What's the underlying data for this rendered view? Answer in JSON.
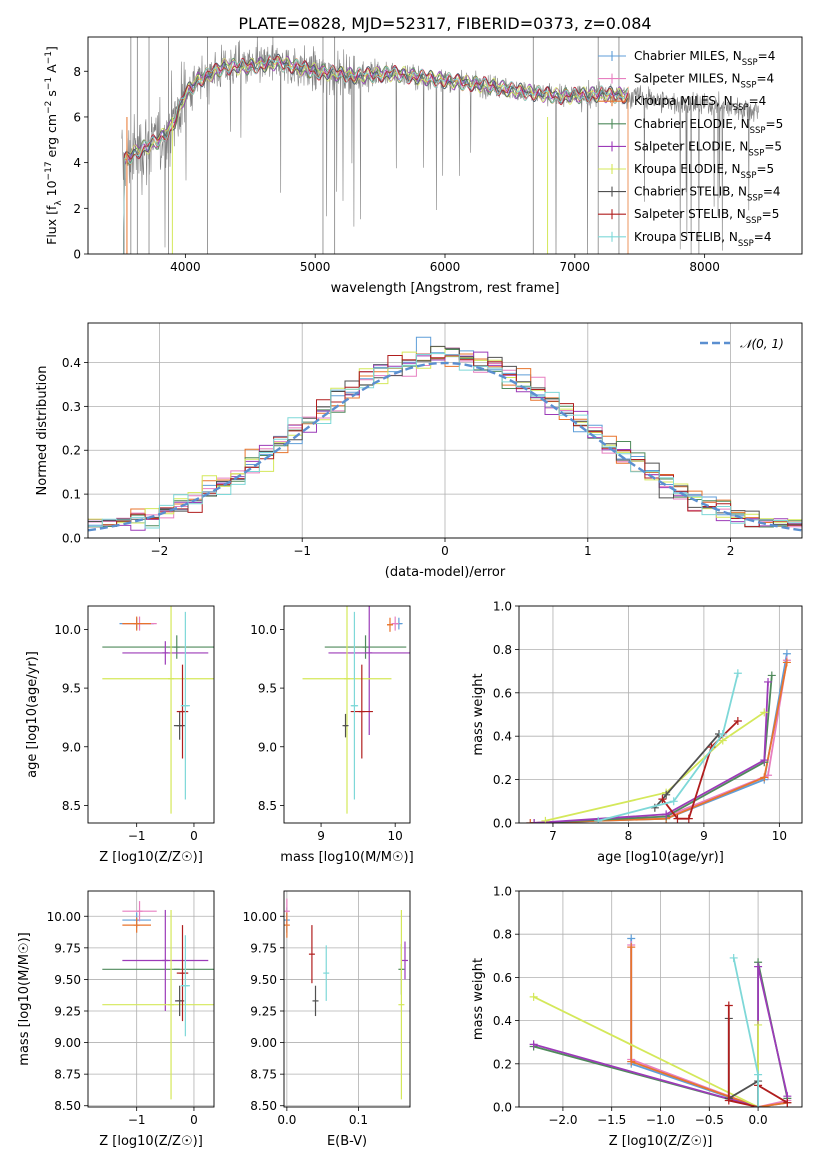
{
  "figure": {
    "title": "PLATE=0828, MJD=52317, FIBERID=0373, z=0.084"
  },
  "colors": {
    "Chabrier MILES": "#5f9ed8",
    "Salpeter MILES": "#e77fc0",
    "Kroupa MILES": "#e8742c",
    "Chabrier ELODIE": "#4f8a5b",
    "Salpeter ELODIE": "#9c3bb8",
    "Kroupa ELODIE": "#d4e85a",
    "Chabrier STELIB": "#505050",
    "Salpeter STELIB": "#b01e1e",
    "Kroupa STELIB": "#7ed8d8",
    "data": "#808080",
    "normal": "#5b8fd0",
    "grid": "#b0b0b0"
  },
  "chart_data": [
    {
      "id": "spectrum",
      "type": "line",
      "xlabel": "wavelength [Angstrom, rest frame]",
      "ylabel": "Flux [f_λ 10^-17 erg cm^-2 s^-1 A^-1]",
      "xlim": [
        3250,
        8750
      ],
      "ylim": [
        0,
        9.5
      ],
      "xticks": [
        4000,
        5000,
        6000,
        7000,
        8000
      ],
      "yticks": [
        0,
        2,
        4,
        6,
        8
      ],
      "grid": false,
      "legend_position": "right",
      "legend": [
        {
          "model": "Chabrier MILES",
          "nssp": "4"
        },
        {
          "model": "Salpeter MILES",
          "nssp": "4"
        },
        {
          "model": "Kroupa MILES",
          "nssp": "4"
        },
        {
          "model": "Chabrier ELODIE",
          "nssp": "5"
        },
        {
          "model": "Salpeter ELODIE",
          "nssp": "5"
        },
        {
          "model": "Kroupa ELODIE",
          "nssp": "5"
        },
        {
          "model": "Chabrier STELIB",
          "nssp": "4"
        },
        {
          "model": "Salpeter STELIB",
          "nssp": "5"
        },
        {
          "model": "Kroupa STELIB",
          "nssp": "4"
        }
      ],
      "continuum": {
        "x": [
          3520,
          3600,
          3700,
          3800,
          3900,
          4000,
          4100,
          4200,
          4300,
          4500,
          4700,
          5000,
          5300,
          5600,
          6000,
          6300,
          6600,
          6900,
          7200,
          7500,
          7800,
          8100,
          8400
        ],
        "y": [
          4.0,
          4.4,
          4.7,
          5.0,
          5.6,
          7.0,
          7.6,
          7.9,
          8.2,
          8.2,
          8.4,
          8.0,
          7.8,
          7.9,
          7.6,
          7.4,
          7.1,
          6.9,
          7.0,
          6.9,
          6.6,
          6.5,
          6.3
        ]
      },
      "model_wavelength_range": [
        3510,
        7410
      ]
    },
    {
      "id": "residuals",
      "type": "histogram",
      "xlabel": "(data-model)/error",
      "ylabel": "Normed distribution",
      "xlim": [
        -2.5,
        2.5
      ],
      "ylim": [
        0,
        0.49
      ],
      "xticks": [
        -2,
        -1,
        0,
        1,
        2
      ],
      "yticks": [
        0.0,
        0.1,
        0.2,
        0.3,
        0.4
      ],
      "grid": true,
      "legend_position": "upper right",
      "bin_width": 0.1,
      "reference": {
        "label": "N(0,1)",
        "mean": 0,
        "sigma": 1
      }
    },
    {
      "id": "age-vs-metallicity",
      "type": "scatter",
      "xlabel": "Z [log10(Z/Z☉)]",
      "ylabel": "age [log10(age/yr)]",
      "xlim": [
        -1.85,
        0.35
      ],
      "ylim": [
        8.35,
        10.2
      ],
      "xticks": [
        -1,
        0
      ],
      "yticks": [
        8.5,
        9.0,
        9.5,
        10.0
      ],
      "grid": false,
      "points": [
        {
          "model": "Chabrier MILES",
          "x": -1.0,
          "xerr": 0.3,
          "y": 10.05,
          "yerr": 0.05
        },
        {
          "model": "Salpeter MILES",
          "x": -0.95,
          "xerr": 0.3,
          "y": 10.05,
          "yerr": 0.06
        },
        {
          "model": "Kroupa MILES",
          "x": -1.0,
          "xerr": 0.25,
          "y": 10.05,
          "yerr": 0.06
        },
        {
          "model": "Chabrier ELODIE",
          "x": -0.3,
          "xerr": 1.3,
          "y": 9.85,
          "yerr": 0.1
        },
        {
          "model": "Salpeter ELODIE",
          "x": -0.5,
          "xerr": 0.75,
          "y": 9.8,
          "yerr": 0.1
        },
        {
          "model": "Kroupa ELODIE",
          "x": -0.4,
          "xerr": 1.2,
          "y": 9.58,
          "yerr": 1.15
        },
        {
          "model": "Chabrier STELIB",
          "x": -0.25,
          "xerr": 0.1,
          "y": 9.18,
          "yerr": 0.12
        },
        {
          "model": "Salpeter STELIB",
          "x": -0.2,
          "xerr": 0.1,
          "y": 9.3,
          "yerr": 0.4
        },
        {
          "model": "Kroupa STELIB",
          "x": -0.15,
          "xerr": 0.08,
          "y": 9.35,
          "yerr": 0.8
        }
      ]
    },
    {
      "id": "age-vs-mass",
      "type": "scatter",
      "xlabel": "mass [log10(M/M☉)]",
      "ylabel": "",
      "xlim": [
        8.5,
        10.2
      ],
      "ylim": [
        8.35,
        10.2
      ],
      "xticks": [
        9,
        10
      ],
      "yticks": [
        8.5,
        9.0,
        9.5,
        10.0
      ],
      "grid": false,
      "points": [
        {
          "model": "Chabrier MILES",
          "x": 10.05,
          "xerr": 0.05,
          "y": 10.05,
          "yerr": 0.05
        },
        {
          "model": "Salpeter MILES",
          "x": 10.0,
          "xerr": 0.05,
          "y": 10.05,
          "yerr": 0.06
        },
        {
          "model": "Kroupa MILES",
          "x": 9.93,
          "xerr": 0.04,
          "y": 10.04,
          "yerr": 0.06
        },
        {
          "model": "Chabrier ELODIE",
          "x": 9.6,
          "xerr": 0.55,
          "y": 9.85,
          "yerr": 0.1
        },
        {
          "model": "Salpeter ELODIE",
          "x": 9.65,
          "xerr": 0.55,
          "y": 9.8,
          "yerr": 0.7
        },
        {
          "model": "Kroupa ELODIE",
          "x": 9.35,
          "xerr": 0.6,
          "y": 9.58,
          "yerr": 1.15
        },
        {
          "model": "Chabrier STELIB",
          "x": 9.33,
          "xerr": 0.02,
          "y": 9.18,
          "yerr": 0.1
        },
        {
          "model": "Salpeter STELIB",
          "x": 9.55,
          "xerr": 0.15,
          "y": 9.3,
          "yerr": 0.4
        },
        {
          "model": "Kroupa STELIB",
          "x": 9.45,
          "xerr": 0.05,
          "y": 9.35,
          "yerr": 0.8
        }
      ]
    },
    {
      "id": "mass-weight-vs-age",
      "type": "line",
      "xlabel": "age [log10(age/yr)]",
      "ylabel": "mass weight",
      "xlim": [
        6.55,
        10.3
      ],
      "ylim": [
        0,
        1
      ],
      "xticks": [
        7,
        8,
        9,
        10
      ],
      "yticks": [
        0.0,
        0.2,
        0.4,
        0.6,
        0.8,
        1.0
      ],
      "grid": true,
      "series": [
        {
          "model": "Chabrier MILES",
          "x": [
            6.7,
            8.5,
            9.8,
            10.1
          ],
          "y": [
            0.0,
            0.02,
            0.2,
            0.78
          ]
        },
        {
          "model": "Salpeter MILES",
          "x": [
            6.7,
            8.5,
            9.85,
            10.1
          ],
          "y": [
            0.0,
            0.03,
            0.22,
            0.75
          ]
        },
        {
          "model": "Kroupa MILES",
          "x": [
            6.7,
            8.5,
            9.8,
            10.1
          ],
          "y": [
            0.0,
            0.02,
            0.21,
            0.74
          ]
        },
        {
          "model": "Chabrier ELODIE",
          "x": [
            6.75,
            8.5,
            9.8,
            9.9
          ],
          "y": [
            0.0,
            0.03,
            0.28,
            0.68
          ]
        },
        {
          "model": "Salpeter ELODIE",
          "x": [
            6.75,
            8.5,
            9.8,
            9.85
          ],
          "y": [
            0.0,
            0.04,
            0.29,
            0.65
          ]
        },
        {
          "model": "Kroupa ELODIE",
          "x": [
            6.9,
            8.5,
            9.25,
            9.8
          ],
          "y": [
            0.01,
            0.14,
            0.38,
            0.51
          ]
        },
        {
          "model": "Chabrier STELIB",
          "x": [
            8.35,
            8.5,
            9.2
          ],
          "y": [
            0.07,
            0.13,
            0.41
          ]
        },
        {
          "model": "Salpeter STELIB",
          "x": [
            8.45,
            8.65,
            8.8,
            9.1,
            9.45
          ],
          "y": [
            0.11,
            0.02,
            0.02,
            0.35,
            0.47
          ]
        },
        {
          "model": "Kroupa STELIB",
          "x": [
            7.6,
            8.6,
            9.25,
            9.45
          ],
          "y": [
            0.01,
            0.1,
            0.41,
            0.69
          ]
        }
      ]
    },
    {
      "id": "mass-vs-metallicity",
      "type": "scatter",
      "xlabel": "Z [log10(Z/Z☉)]",
      "ylabel": "mass [log10(M/M☉)]",
      "xlim": [
        -1.85,
        0.35
      ],
      "ylim": [
        8.49,
        10.2
      ],
      "xticks": [
        -1,
        0
      ],
      "yticks": [
        8.5,
        8.75,
        9.0,
        9.25,
        9.5,
        9.75,
        10.0
      ],
      "grid": true,
      "points": [
        {
          "model": "Chabrier MILES",
          "x": -1.0,
          "xerr": 0.25,
          "y": 9.97,
          "yerr": 0.06
        },
        {
          "model": "Salpeter MILES",
          "x": -0.95,
          "xerr": 0.3,
          "y": 10.04,
          "yerr": 0.08
        },
        {
          "model": "Kroupa MILES",
          "x": -1.0,
          "xerr": 0.25,
          "y": 9.93,
          "yerr": 0.06
        },
        {
          "model": "Chabrier ELODIE",
          "x": -0.3,
          "xerr": 1.3,
          "y": 9.58,
          "yerr": 0.0
        },
        {
          "model": "Salpeter ELODIE",
          "x": -0.5,
          "xerr": 0.75,
          "y": 9.65,
          "yerr": 0.4
        },
        {
          "model": "Kroupa ELODIE",
          "x": -0.4,
          "xerr": 1.2,
          "y": 9.3,
          "yerr": 0.75
        },
        {
          "model": "Chabrier STELIB",
          "x": -0.25,
          "xerr": 0.08,
          "y": 9.33,
          "yerr": 0.12
        },
        {
          "model": "Salpeter STELIB",
          "x": -0.2,
          "xerr": 0.1,
          "y": 9.55,
          "yerr": 0.38
        },
        {
          "model": "Kroupa STELIB",
          "x": -0.15,
          "xerr": 0.08,
          "y": 9.45,
          "yerr": 0.4
        }
      ]
    },
    {
      "id": "mass-vs-extinction",
      "type": "scatter",
      "xlabel": "E(B-V)",
      "ylabel": "",
      "xlim": [
        -0.004,
        0.172
      ],
      "ylim": [
        8.49,
        10.2
      ],
      "xticks": [
        0.0,
        0.1
      ],
      "yticks": [
        8.5,
        8.75,
        9.0,
        9.25,
        9.5,
        9.75,
        10.0
      ],
      "grid": true,
      "points": [
        {
          "model": "Chabrier MILES",
          "x": 0.0,
          "y": 9.97,
          "yerr": 0.1
        },
        {
          "model": "Salpeter MILES",
          "x": 0.0,
          "y": 10.04,
          "yerr": 0.1
        },
        {
          "model": "Kroupa MILES",
          "x": 0.0,
          "y": 9.93,
          "yerr": 0.1
        },
        {
          "model": "Chabrier ELODIE",
          "x": 0.16,
          "y": 9.58,
          "yerr": 0.2
        },
        {
          "model": "Salpeter ELODIE",
          "x": 0.165,
          "y": 9.65,
          "yerr": 0.15
        },
        {
          "model": "Kroupa ELODIE",
          "x": 0.16,
          "y": 9.3,
          "yerr": 0.75
        },
        {
          "model": "Chabrier STELIB",
          "x": 0.04,
          "y": 9.33,
          "yerr": 0.12
        },
        {
          "model": "Salpeter STELIB",
          "x": 0.035,
          "y": 9.7,
          "yerr": 0.23
        },
        {
          "model": "Kroupa STELIB",
          "x": 0.055,
          "y": 9.55,
          "yerr": 0.22
        }
      ]
    },
    {
      "id": "mass-weight-vs-metallicity",
      "type": "line",
      "xlabel": "Z [log10(Z/Z☉)]",
      "ylabel": "mass weight",
      "xlim": [
        -2.45,
        0.45
      ],
      "ylim": [
        0,
        1
      ],
      "xticks": [
        -2.0,
        -1.5,
        -1.0,
        -0.5,
        0.0
      ],
      "yticks": [
        0.0,
        0.2,
        0.4,
        0.6,
        0.8,
        1.0
      ],
      "grid": true,
      "series": [
        {
          "model": "Chabrier MILES",
          "x": [
            -1.3,
            -1.3,
            0.0,
            0.3
          ],
          "y": [
            0.78,
            0.2,
            0.0,
            0.02
          ]
        },
        {
          "model": "Salpeter MILES",
          "x": [
            -1.3,
            -1.3,
            0.0,
            0.3
          ],
          "y": [
            0.75,
            0.22,
            0.0,
            0.03
          ]
        },
        {
          "model": "Kroupa MILES",
          "x": [
            -1.3,
            -1.3,
            0.0,
            0.3
          ],
          "y": [
            0.74,
            0.21,
            0.0,
            0.02
          ]
        },
        {
          "model": "Chabrier ELODIE",
          "x": [
            -2.3,
            0.0,
            0.0,
            0.3
          ],
          "y": [
            0.28,
            0.0,
            0.67,
            0.04
          ]
        },
        {
          "model": "Salpeter ELODIE",
          "x": [
            -2.3,
            0.0,
            0.0,
            0.3
          ],
          "y": [
            0.29,
            0.0,
            0.65,
            0.05
          ]
        },
        {
          "model": "Kroupa ELODIE",
          "x": [
            -2.3,
            0.0,
            0.0
          ],
          "y": [
            0.51,
            0.0,
            0.38
          ]
        },
        {
          "model": "Chabrier STELIB",
          "x": [
            -0.3,
            -0.3,
            0.0,
            0.0
          ],
          "y": [
            0.41,
            0.04,
            0.12,
            0.0
          ]
        },
        {
          "model": "Salpeter STELIB",
          "x": [
            -0.3,
            -0.3,
            0.0,
            0.0,
            0.3
          ],
          "y": [
            0.47,
            0.03,
            0.0,
            0.1,
            0.02
          ]
        },
        {
          "model": "Kroupa STELIB",
          "x": [
            -0.25,
            0.0,
            0.0
          ],
          "y": [
            0.69,
            0.15,
            0.0
          ]
        }
      ]
    }
  ]
}
